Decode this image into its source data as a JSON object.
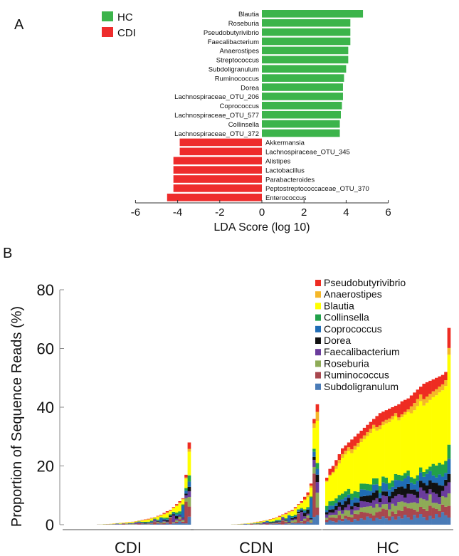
{
  "chart_data": [
    {
      "type": "bar",
      "orientation": "horizontal",
      "panel_label": "A",
      "xlabel": "LDA Score (log 10)",
      "xlim": [
        -6,
        6
      ],
      "xticks": [
        "-6",
        "-4",
        "-2",
        "0",
        "2",
        "4",
        "6"
      ],
      "legend": [
        {
          "label": "HC",
          "color": "#3cb44b"
        },
        {
          "label": "CDI",
          "color": "#ee2c2c"
        }
      ],
      "categories": [
        "Blautia",
        "Roseburia",
        "Pseudobutyrivibrio",
        "Faecalibacterium",
        "Anaerostipes",
        "Streptococcus",
        "Subdoligranulum",
        "Ruminococcus",
        "Dorea",
        "Lachnospiraceae_OTU_206",
        "Coprococcus",
        "Lachnospiraceae_OTU_577",
        "Collinsella",
        "Lachnospiraceae_OTU_372",
        "Akkermansia",
        "Lachnospiraceae_OTU_345",
        "Alistipes",
        "Lactobacillus",
        "Parabacteroides",
        "Peptostreptococcaceae_OTU_370",
        "Enterococcus"
      ],
      "values": [
        4.8,
        4.2,
        4.2,
        4.2,
        4.1,
        4.1,
        4.0,
        3.9,
        3.85,
        3.85,
        3.8,
        3.75,
        3.7,
        3.7,
        -3.9,
        -3.9,
        -4.2,
        -4.2,
        -4.2,
        -4.2,
        -4.5
      ],
      "groups": [
        "HC",
        "HC",
        "HC",
        "HC",
        "HC",
        "HC",
        "HC",
        "HC",
        "HC",
        "HC",
        "HC",
        "HC",
        "HC",
        "HC",
        "CDI",
        "CDI",
        "CDI",
        "CDI",
        "CDI",
        "CDI",
        "CDI"
      ]
    },
    {
      "type": "bar",
      "stacked": true,
      "panel_label": "B",
      "ylabel": "Proportion of Sequence Reads (%)",
      "ylim": [
        0,
        80
      ],
      "yticks": [
        "0",
        "20",
        "40",
        "60",
        "80"
      ],
      "group_labels": [
        "CDI",
        "CDN",
        "HC"
      ],
      "group_sizes": [
        40,
        40,
        40
      ],
      "legend_position": "top-right",
      "series": [
        {
          "name": "Pseudobutyrivibrio",
          "color": "#ee2c22"
        },
        {
          "name": "Anaerostipes",
          "color": "#f5b729"
        },
        {
          "name": "Blautia",
          "color": "#ffff00"
        },
        {
          "name": "Collinsella",
          "color": "#21a14a"
        },
        {
          "name": "Coprococcus",
          "color": "#1f6cb5"
        },
        {
          "name": "Dorea",
          "color": "#111111"
        },
        {
          "name": "Faecalibacterium",
          "color": "#6a3c9c"
        },
        {
          "name": "Roseburia",
          "color": "#8eab57"
        },
        {
          "name": "Ruminococcus",
          "color": "#a8474e"
        },
        {
          "name": "Subdoligranulum",
          "color": "#4a7bb7"
        }
      ],
      "totals": {
        "CDI": [
          0,
          0,
          0,
          0,
          0,
          0,
          0,
          0,
          0,
          0,
          0.1,
          0.1,
          0.2,
          0.2,
          0.3,
          0.4,
          0.5,
          0.6,
          0.7,
          0.8,
          0.9,
          1.0,
          1.2,
          1.4,
          1.6,
          1.8,
          2.0,
          2.3,
          2.6,
          3.0,
          3.4,
          4.0,
          4.6,
          5.0,
          6.0,
          7.0,
          8.0,
          9.0,
          17.0,
          28.0
        ],
        "CDN": [
          0,
          0,
          0,
          0,
          0,
          0,
          0,
          0,
          0,
          0,
          0,
          0,
          0.1,
          0.1,
          0.2,
          0.3,
          0.4,
          0.5,
          0.6,
          0.8,
          1.0,
          1.2,
          1.4,
          1.6,
          1.9,
          2.2,
          2.5,
          3.0,
          3.5,
          4.0,
          4.5,
          5.0,
          6.0,
          7.0,
          8.0,
          9.5,
          11.0,
          14.0,
          36.0,
          41.0
        ],
        "HC": [
          16,
          19,
          20,
          22,
          24,
          26,
          27,
          28,
          29,
          30,
          31,
          32,
          33,
          34,
          35,
          36,
          37,
          38,
          38.5,
          39,
          39.5,
          40,
          40.5,
          41,
          42,
          42.5,
          43,
          44,
          45,
          46,
          47,
          48,
          48.5,
          49,
          49.5,
          50,
          50.5,
          51,
          52,
          67
        ]
      }
    }
  ]
}
